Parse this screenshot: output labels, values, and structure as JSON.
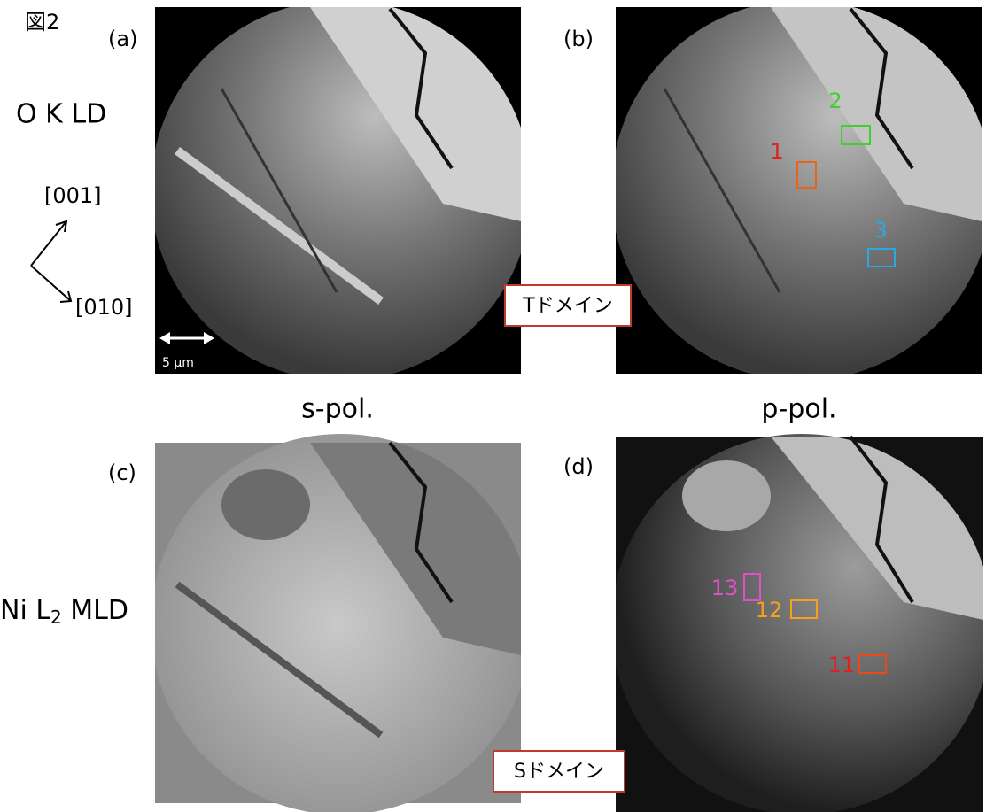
{
  "figure_label": "図2",
  "row_labels": {
    "top": "O K LD",
    "bottom": {
      "prefix": "Ni L",
      "subscript": "2",
      "suffix": " MLD"
    }
  },
  "axes": {
    "up": "[001]",
    "down": "[010]"
  },
  "scale_bar": "5 µm",
  "panels": [
    {
      "label": "(a)"
    },
    {
      "label": "(b)",
      "regions": [
        "1",
        "2",
        "3"
      ]
    },
    {
      "label": "(c)"
    },
    {
      "label": "(d)",
      "regions": [
        "13",
        "12",
        "11"
      ]
    }
  ],
  "columns": [
    "s-pol.",
    "p-pol."
  ],
  "domains": [
    "Tドメイン",
    "Sドメイン"
  ]
}
